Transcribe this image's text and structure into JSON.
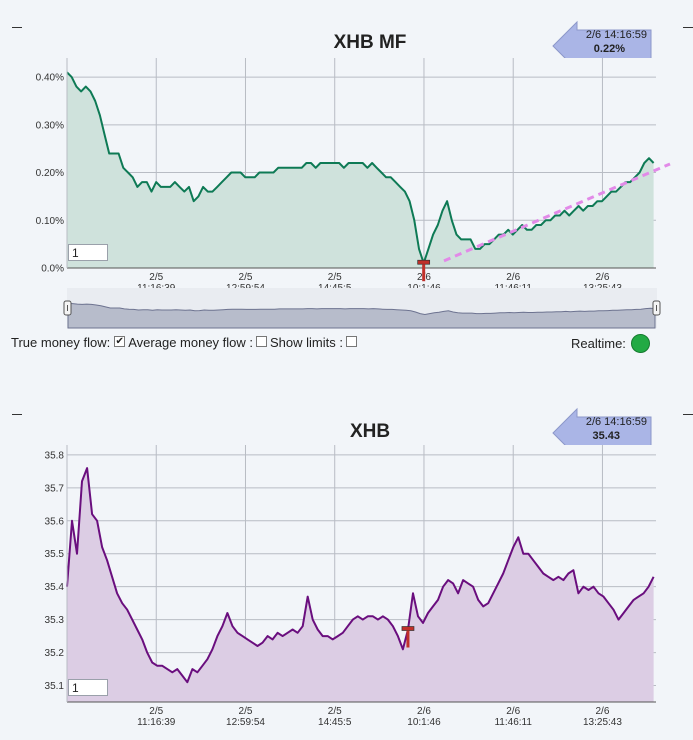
{
  "mf_panel": {
    "title": "XHB MF",
    "callout_time": "2/6 14:16:59",
    "callout_value": "0.22%",
    "period_value": "1"
  },
  "price_panel": {
    "title": "XHB",
    "callout_time": "2/6 14:16:59",
    "callout_value": "35.43",
    "period_value": "1"
  },
  "controls": {
    "true_money_flow_label": "True money flow:",
    "true_money_flow_checked": true,
    "average_money_flow_label": "Average money flow :",
    "average_money_flow_checked": false,
    "show_limits_label": "Show limits :",
    "show_limits_checked": false,
    "realtime_label": "Realtime:"
  },
  "colors": {
    "mf_line": "#0e7a55",
    "mf_fill": "#cfe2dc",
    "trend_line": "#e28ae8",
    "price_line": "#6a0e7e",
    "price_fill": "#dccde4",
    "marker": "#c0302a",
    "realtime_led": "#22aa44",
    "callout_fill": "#aab5e6"
  },
  "chart_data": [
    {
      "type": "area",
      "title": "XHB MF",
      "y_unit": "%",
      "ylim": [
        0.0,
        0.44
      ],
      "y_ticks": [
        "0.0%",
        "0.10%",
        "0.20%",
        "0.30%",
        "0.40%"
      ],
      "y_tick_values": [
        0.0,
        0.1,
        0.2,
        0.3,
        0.4
      ],
      "x_ticks": [
        {
          "date": "2/5",
          "time": "11:16:39"
        },
        {
          "date": "2/5",
          "time": "12:59:54"
        },
        {
          "date": "2/5",
          "time": "14:45:5"
        },
        {
          "date": "2/6",
          "time": "10:1:46"
        },
        {
          "date": "2/6",
          "time": "11:46:11"
        },
        {
          "date": "2/6",
          "time": "13:25:43"
        }
      ],
      "grid": true,
      "series": [
        {
          "values": [
            0.41,
            0.4,
            0.38,
            0.37,
            0.38,
            0.37,
            0.35,
            0.32,
            0.28,
            0.24,
            0.24,
            0.24,
            0.21,
            0.2,
            0.19,
            0.17,
            0.18,
            0.18,
            0.16,
            0.18,
            0.17,
            0.17,
            0.17,
            0.18,
            0.17,
            0.16,
            0.17,
            0.14,
            0.15,
            0.17,
            0.16,
            0.16,
            0.17,
            0.18,
            0.19,
            0.2,
            0.2,
            0.2,
            0.19,
            0.19,
            0.19,
            0.2,
            0.2,
            0.2,
            0.2,
            0.21,
            0.21,
            0.21,
            0.21,
            0.21,
            0.21,
            0.22,
            0.22,
            0.21,
            0.22,
            0.22,
            0.22,
            0.22,
            0.22,
            0.21,
            0.22,
            0.22,
            0.22,
            0.22,
            0.21,
            0.22,
            0.21,
            0.2,
            0.19,
            0.19,
            0.18,
            0.17,
            0.16,
            0.14,
            0.1,
            0.04,
            0.01,
            0.04,
            0.07,
            0.09,
            0.12,
            0.14,
            0.1,
            0.07,
            0.06,
            0.06,
            0.06,
            0.04,
            0.04,
            0.05,
            0.05,
            0.06,
            0.07,
            0.07,
            0.08,
            0.07,
            0.08,
            0.09,
            0.08,
            0.08,
            0.09,
            0.09,
            0.1,
            0.1,
            0.11,
            0.11,
            0.12,
            0.11,
            0.12,
            0.13,
            0.12,
            0.13,
            0.13,
            0.14,
            0.14,
            0.15,
            0.16,
            0.16,
            0.17,
            0.18,
            0.18,
            0.19,
            0.2,
            0.22,
            0.23,
            0.22
          ],
          "x_start_frac": 0.0,
          "x_end_frac": 0.996
        }
      ],
      "trend_line": {
        "from": [
          0.64,
          0.015
        ],
        "to": [
          1.0,
          0.21
        ]
      },
      "marker_index": 76,
      "legend": "none"
    },
    {
      "type": "area",
      "title": "XHB",
      "ylim": [
        35.05,
        35.83
      ],
      "y_ticks": [
        "35.1",
        "35.2",
        "35.3",
        "35.4",
        "35.5",
        "35.6",
        "35.7",
        "35.8"
      ],
      "y_tick_values": [
        35.1,
        35.2,
        35.3,
        35.4,
        35.5,
        35.6,
        35.7,
        35.8
      ],
      "x_ticks": [
        {
          "date": "2/5",
          "time": "11:16:39"
        },
        {
          "date": "2/5",
          "time": "12:59:54"
        },
        {
          "date": "2/5",
          "time": "14:45:5"
        },
        {
          "date": "2/6",
          "time": "10:1:46"
        },
        {
          "date": "2/6",
          "time": "11:46:11"
        },
        {
          "date": "2/6",
          "time": "13:25:43"
        }
      ],
      "grid": true,
      "series": [
        {
          "values": [
            35.4,
            35.6,
            35.5,
            35.72,
            35.76,
            35.62,
            35.6,
            35.52,
            35.48,
            35.43,
            35.38,
            35.35,
            35.33,
            35.3,
            35.27,
            35.24,
            35.2,
            35.17,
            35.16,
            35.16,
            35.15,
            35.14,
            35.15,
            35.13,
            35.11,
            35.15,
            35.14,
            35.16,
            35.18,
            35.21,
            35.25,
            35.28,
            35.32,
            35.28,
            35.26,
            35.25,
            35.24,
            35.23,
            35.22,
            35.23,
            35.25,
            35.24,
            35.26,
            35.25,
            35.26,
            35.27,
            35.26,
            35.28,
            35.37,
            35.3,
            35.27,
            35.25,
            35.25,
            35.24,
            35.25,
            35.26,
            35.28,
            35.3,
            35.31,
            35.3,
            35.31,
            35.31,
            35.3,
            35.31,
            35.3,
            35.28,
            35.25,
            35.21,
            35.27,
            35.38,
            35.31,
            35.29,
            35.32,
            35.34,
            35.36,
            35.4,
            35.42,
            35.41,
            35.38,
            35.42,
            35.41,
            35.4,
            35.36,
            35.34,
            35.35,
            35.38,
            35.41,
            35.44,
            35.48,
            35.52,
            35.55,
            35.5,
            35.5,
            35.48,
            35.46,
            35.44,
            35.43,
            35.42,
            35.43,
            35.42,
            35.44,
            35.45,
            35.38,
            35.4,
            35.39,
            35.4,
            35.38,
            35.37,
            35.35,
            35.33,
            35.3,
            35.32,
            35.34,
            35.36,
            35.37,
            35.38,
            35.4,
            35.43
          ],
          "x_start_frac": 0.0,
          "x_end_frac": 0.996
        }
      ],
      "marker_index": 68,
      "legend": "none"
    }
  ]
}
